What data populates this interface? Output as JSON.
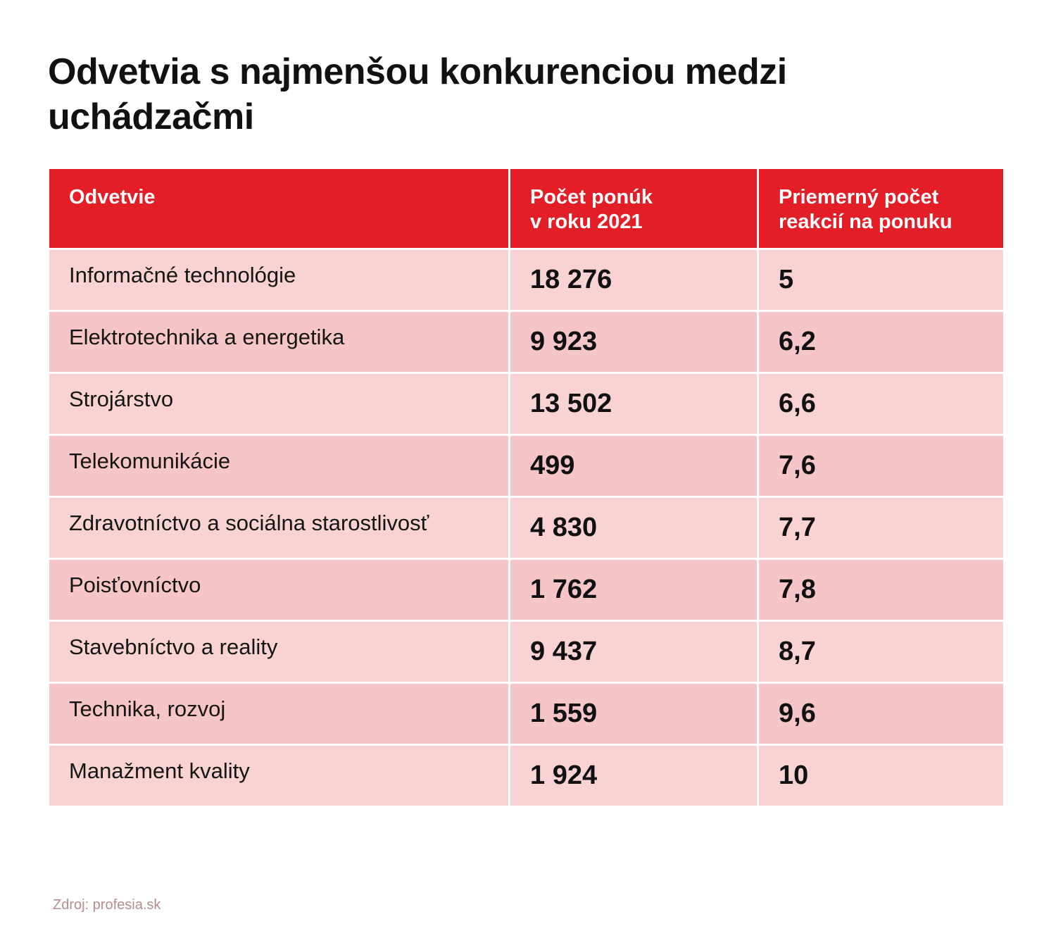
{
  "title": "Odvetvia s najmenšou konkurenciou medzi uchádzačmi",
  "source": "Zdroj: profesia.sk",
  "colors": {
    "header_bg": "#e31e27",
    "row_light": "#f9d2d4",
    "row_dark": "#f6c5c8"
  },
  "chart_data": {
    "type": "table",
    "title": "Odvetvia s najmenšou konkurenciou medzi uchádzačmi",
    "columns": [
      {
        "line1": "Odvetvie",
        "line2": ""
      },
      {
        "line1": "Počet ponúk",
        "line2": "v roku 2021"
      },
      {
        "line1": "Priemerný počet",
        "line2": "reakcií na ponuku"
      }
    ],
    "rows": [
      {
        "sector": "Informačné technológie",
        "offers": "18 276",
        "reactions": "5"
      },
      {
        "sector": "Elektrotechnika a energetika",
        "offers": "9 923",
        "reactions": "6,2"
      },
      {
        "sector": "Strojárstvo",
        "offers": "13 502",
        "reactions": "6,6"
      },
      {
        "sector": "Telekomunikácie",
        "offers": "499",
        "reactions": "7,6"
      },
      {
        "sector": "Zdravotníctvo a sociálna starostlivosť",
        "offers": "4 830",
        "reactions": "7,7"
      },
      {
        "sector": "Poisťovníctvo",
        "offers": "1 762",
        "reactions": "7,8"
      },
      {
        "sector": "Stavebníctvo a reality",
        "offers": "9 437",
        "reactions": "8,7"
      },
      {
        "sector": "Technika, rozvoj",
        "offers": "1 559",
        "reactions": "9,6"
      },
      {
        "sector": "Manažment kvality",
        "offers": "1 924",
        "reactions": "10"
      }
    ],
    "source": "profesia.sk"
  }
}
